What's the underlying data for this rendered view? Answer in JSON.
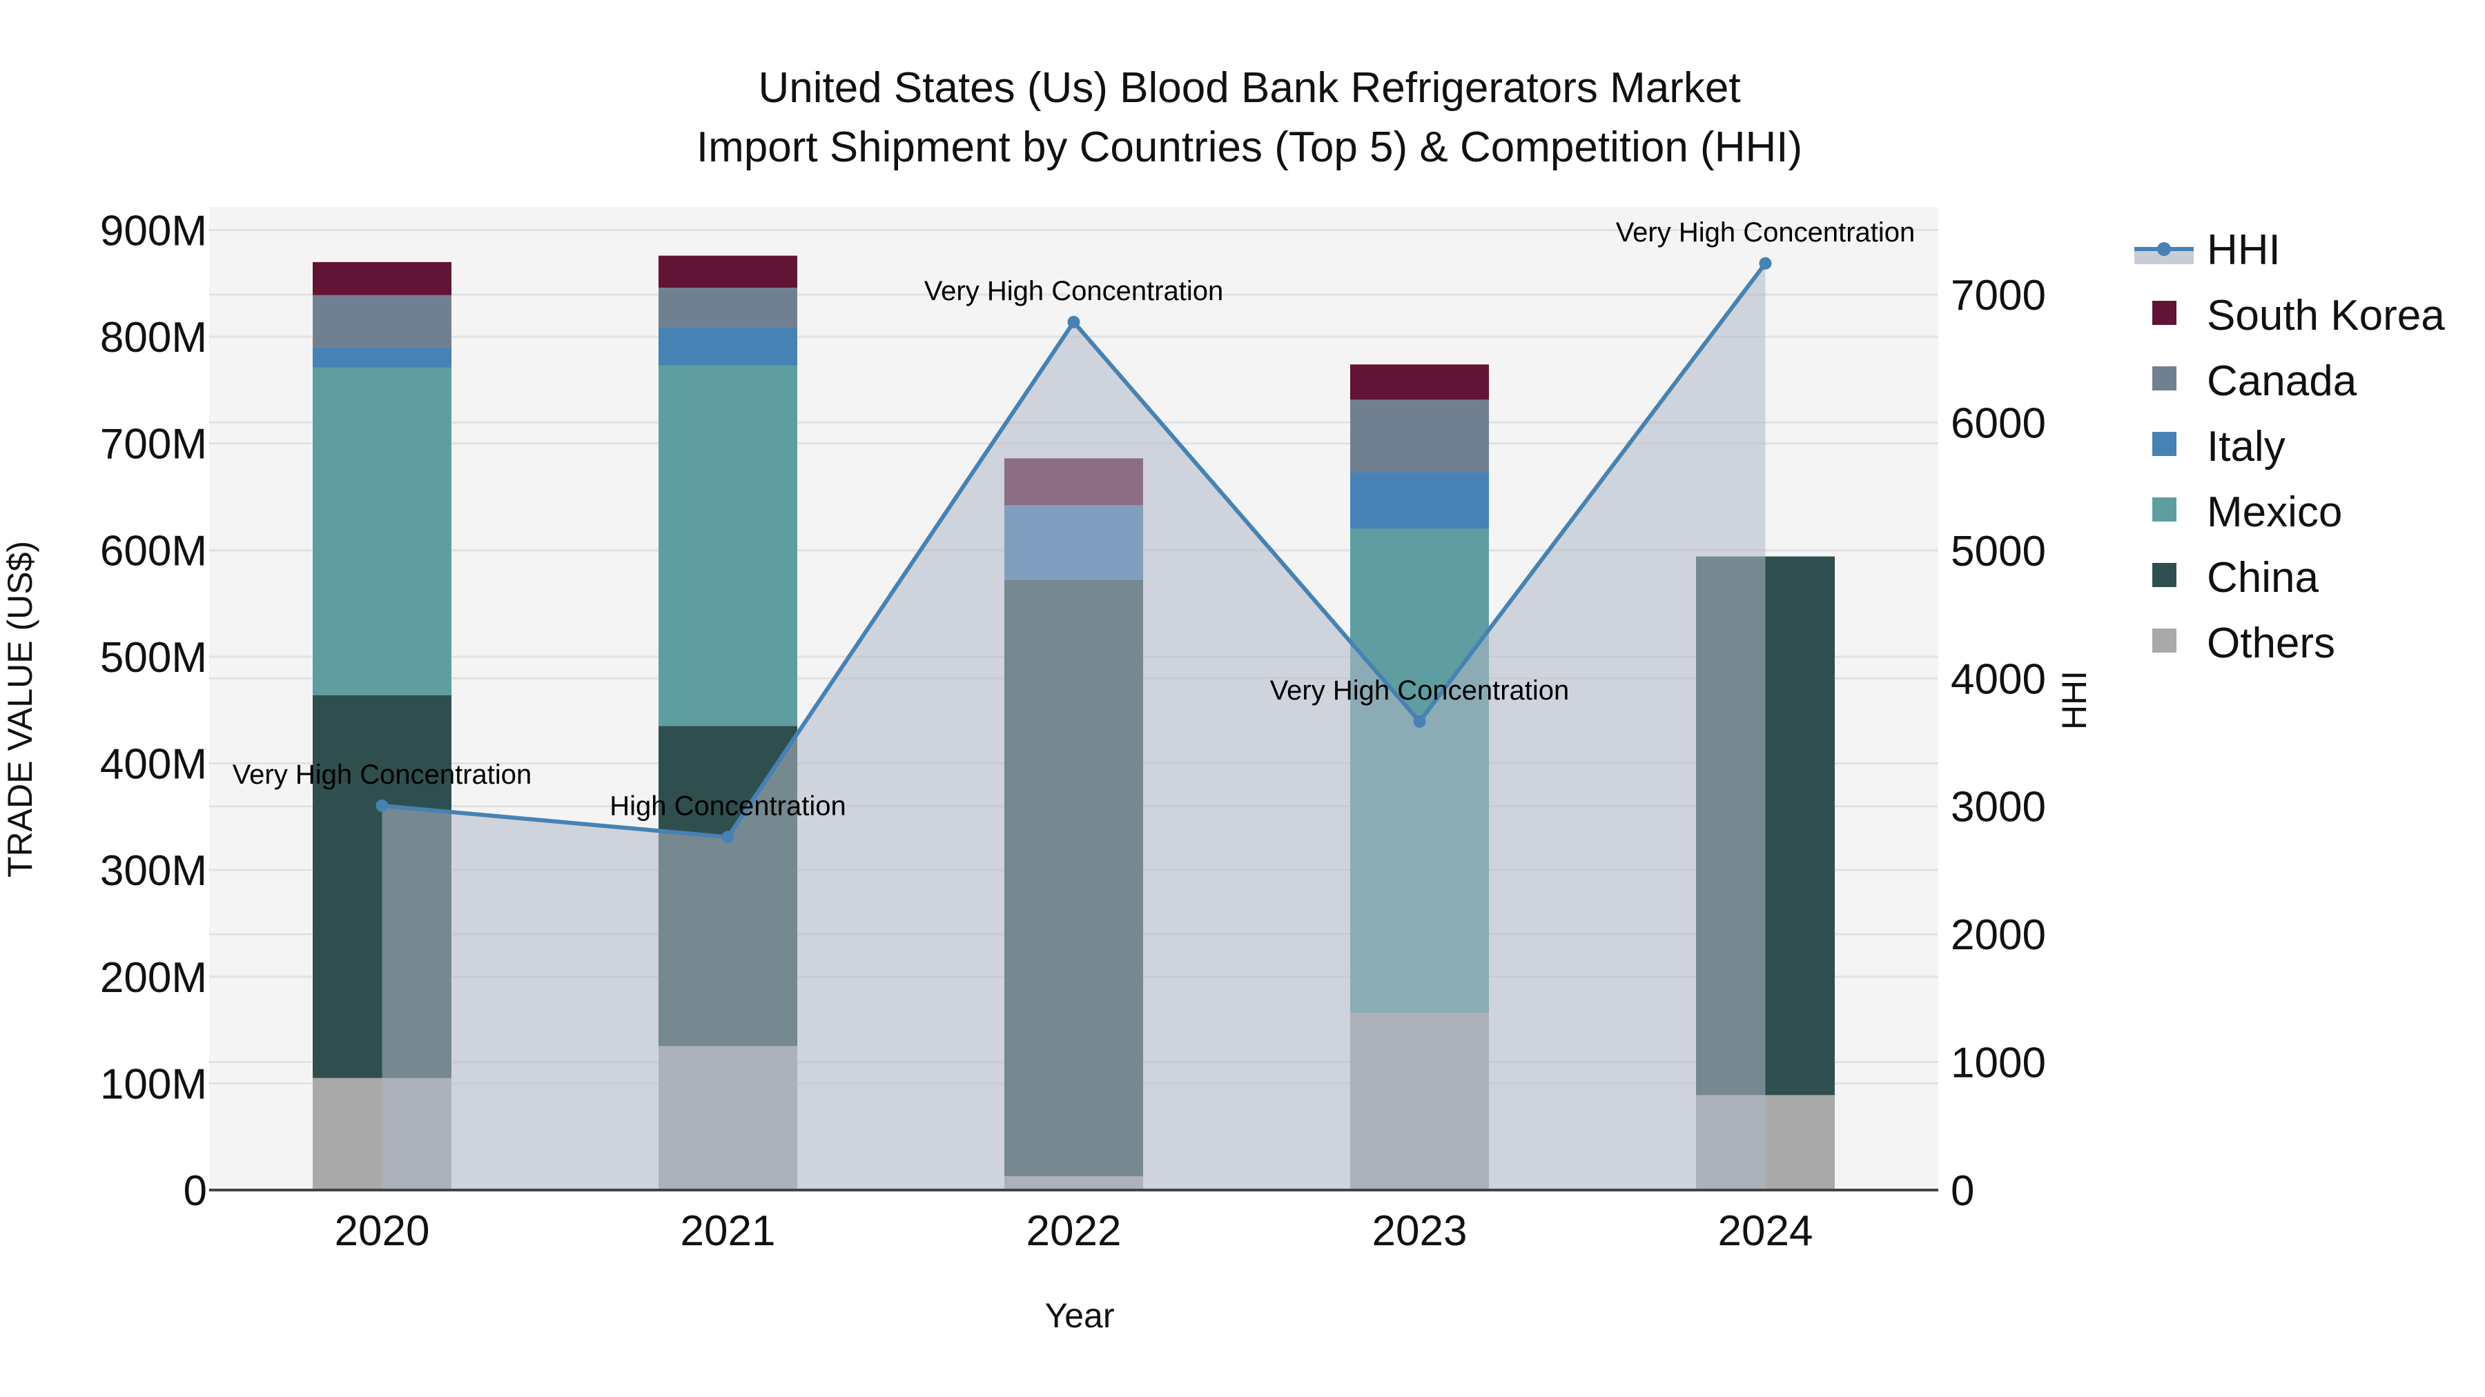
{
  "title": {
    "line1": "United States (Us) Blood Bank Refrigerators Market",
    "line2": "Import Shipment by Countries (Top 5) & Competition (HHI)"
  },
  "axes": {
    "x_title": "Year",
    "y_left_title": "TRADE VALUE (US$)",
    "y_right_title": "HHI",
    "y_left_ticks": [
      "0",
      "100M",
      "200M",
      "300M",
      "400M",
      "500M",
      "600M",
      "700M",
      "800M",
      "900M"
    ],
    "y_right_ticks": [
      "0",
      "1000",
      "2000",
      "3000",
      "4000",
      "5000",
      "6000",
      "7000"
    ],
    "x_ticks": [
      "2020",
      "2021",
      "2022",
      "2023",
      "2024"
    ]
  },
  "legend": [
    {
      "label": "HHI",
      "type": "line",
      "color": "#4682b4",
      "fill": "#c8cdd5"
    },
    {
      "label": "South Korea",
      "type": "box",
      "color": "#611434"
    },
    {
      "label": "Canada",
      "type": "box",
      "color": "#708090"
    },
    {
      "label": "Italy",
      "type": "box",
      "color": "#4682b4"
    },
    {
      "label": "Mexico",
      "type": "box",
      "color": "#5f9ea0"
    },
    {
      "label": "China",
      "type": "box",
      "color": "#2f4f4f"
    },
    {
      "label": "Others",
      "type": "box",
      "color": "#a9a9a9"
    }
  ],
  "colors": {
    "plot_bg": "#f4f4f4",
    "grid": "#e2e2e2",
    "hhi_line": "#4682b4",
    "hhi_fill": "rgba(176,184,198,0.55)",
    "axis_line": "#444444"
  },
  "chart_data": {
    "type": "bar",
    "subtype": "stacked bar with line overlay (secondary axis)",
    "title": "United States (Us) Blood Bank Refrigerators Market Import Shipment by Countries (Top 5) & Competition (HHI)",
    "xlabel": "Year",
    "ylabel": "TRADE VALUE (US$)",
    "y2label": "HHI",
    "categories": [
      "2020",
      "2021",
      "2022",
      "2023",
      "2024"
    ],
    "ylim": [
      0,
      900000000
    ],
    "y2lim": [
      0,
      7000
    ],
    "grid": true,
    "legend_position": "right",
    "series": [
      {
        "name": "Others",
        "color": "#a9a9a9",
        "values": [
          105000000,
          135000000,
          13000000,
          166000000,
          89000000
        ]
      },
      {
        "name": "China",
        "color": "#2f4f4f",
        "values": [
          359000000,
          300000000,
          559000000,
          0,
          505000000
        ]
      },
      {
        "name": "Mexico",
        "color": "#5f9ea0",
        "values": [
          307000000,
          338000000,
          0,
          454000000,
          0
        ]
      },
      {
        "name": "Italy",
        "color": "#4682b4",
        "values": [
          19000000,
          36000000,
          70000000,
          53000000,
          0
        ]
      },
      {
        "name": "Canada",
        "color": "#708090",
        "values": [
          49000000,
          37000000,
          0,
          68000000,
          0
        ]
      },
      {
        "name": "South Korea",
        "color": "#611434",
        "values": [
          31000000,
          30000000,
          44000000,
          33000000,
          0
        ]
      },
      {
        "name": "HHI",
        "type": "line",
        "axis": "y2",
        "color": "#4682b4",
        "values": [
          3004,
          2759,
          6785,
          3662,
          7244
        ]
      }
    ],
    "annotations": [
      {
        "x": "2020",
        "text": "Very High Concentration"
      },
      {
        "x": "2021",
        "text": "High Concentration"
      },
      {
        "x": "2022",
        "text": "Very High Concentration"
      },
      {
        "x": "2023",
        "text": "Very High Concentration"
      },
      {
        "x": "2024",
        "text": "Very High Concentration"
      }
    ]
  }
}
